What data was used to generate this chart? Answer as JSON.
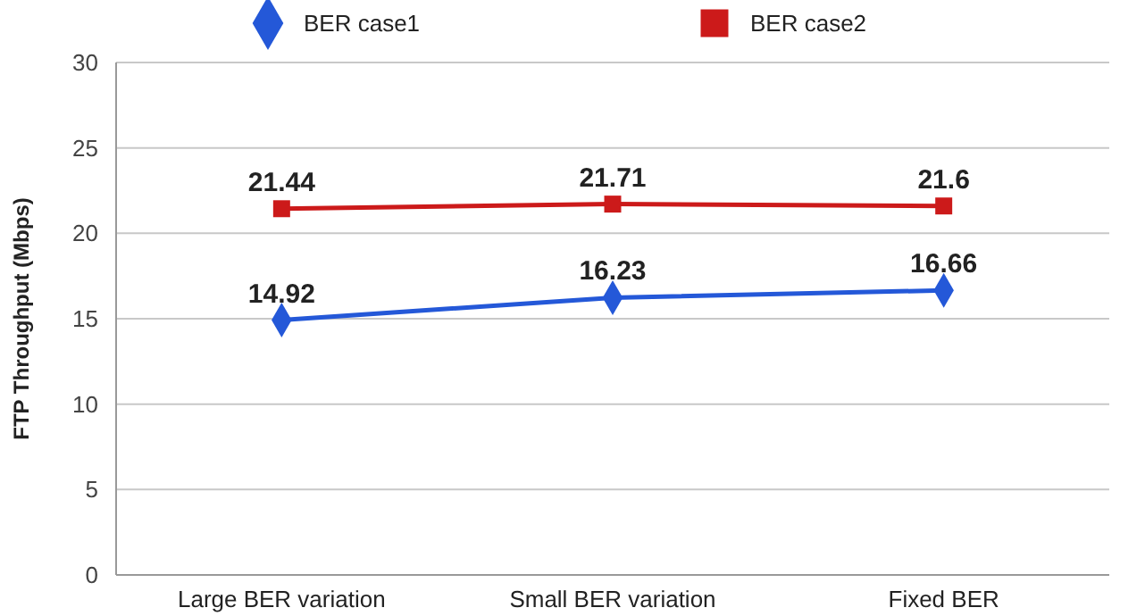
{
  "chart_data": {
    "type": "line",
    "ylabel": "FTP Throughput (Mbps)",
    "categories": [
      "Large BER variation",
      "Small BER variation",
      "Fixed BER"
    ],
    "series": [
      {
        "name": "BER case1",
        "color": "#2458d8",
        "values": [
          14.92,
          16.23,
          16.66
        ],
        "marker": "diamond"
      },
      {
        "name": "BER case2",
        "color": "#cc1a1a",
        "values": [
          21.44,
          21.71,
          21.6
        ],
        "marker": "square"
      }
    ],
    "ylim": [
      0,
      30
    ],
    "yticks": [
      0,
      5,
      10,
      15,
      20,
      25,
      30
    ],
    "grid": "y",
    "legend": "top",
    "data_labels": true
  }
}
